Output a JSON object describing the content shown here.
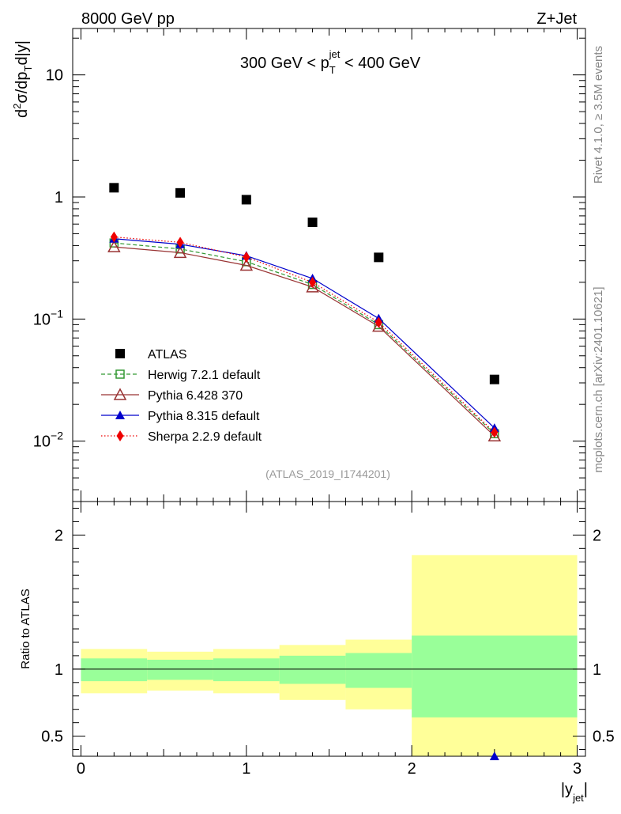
{
  "header": {
    "left": "8000 GeV pp",
    "right": "Z+Jet"
  },
  "side_text": {
    "top": "Rivet 4.1.0, ≥ 3.5M events",
    "bottom": "mcplots.cern.ch [arXiv:2401.10621]"
  },
  "watermark": "(ATLAS_2019_I1744201)",
  "colors": {
    "atlas": "#000000",
    "herwig": "#339933",
    "pythia6": "#993333",
    "pythia8": "#0000cc",
    "sherpa": "#ee0000",
    "band_inner": "#99ff99",
    "band_outer": "#ffff99"
  },
  "chart_data": [
    {
      "type": "line",
      "role": "main",
      "title": "300 GeV < p_T^jet < 400 GeV",
      "title_parts": {
        "pre": "300 GeV < p",
        "sub": "T",
        "sup": "jet",
        "post": " < 400 GeV"
      },
      "ylabel": "d²σ/dp_T d|y|",
      "ylabel_parts": {
        "a": "d",
        "sup": "2",
        "b": "σ/dp",
        "sub": "T",
        "c": "d|y|"
      },
      "yscale": "log",
      "ylim": [
        0.0032,
        24
      ],
      "xlim": [
        -0.05,
        3.05
      ],
      "ytick_labels": [
        {
          "value": 10,
          "label": "10"
        },
        {
          "value": 1,
          "label": "1"
        },
        {
          "value": 0.1,
          "base": "10",
          "exp": "−1"
        },
        {
          "value": 0.01,
          "base": "10",
          "exp": "−2"
        }
      ],
      "x": [
        0.2,
        0.6,
        1.0,
        1.4,
        1.8,
        2.5
      ],
      "series": [
        {
          "name": "ATLAS",
          "key": "atlas",
          "marker": "filled-square",
          "line": "none",
          "values": [
            1.19,
            1.08,
            0.95,
            0.62,
            0.32,
            0.032
          ]
        },
        {
          "name": "Herwig 7.2.1 default",
          "key": "herwig",
          "marker": "open-square",
          "line": "dashed",
          "values": [
            0.42,
            0.375,
            0.295,
            0.192,
            0.09,
            0.0115
          ]
        },
        {
          "name": "Pythia 6.428 370",
          "key": "pythia6",
          "marker": "open-triangle",
          "line": "solid",
          "values": [
            0.39,
            0.35,
            0.275,
            0.183,
            0.087,
            0.011
          ]
        },
        {
          "name": "Pythia 8.315 default",
          "key": "pythia8",
          "marker": "filled-triangle",
          "line": "solid",
          "values": [
            0.455,
            0.41,
            0.33,
            0.215,
            0.101,
            0.0128
          ]
        },
        {
          "name": "Sherpa 2.2.9 default",
          "key": "sherpa",
          "marker": "filled-diamond",
          "line": "dotted",
          "values": [
            0.47,
            0.425,
            0.322,
            0.2,
            0.094,
            0.0118
          ]
        }
      ],
      "legend_position": "lower-left"
    },
    {
      "type": "area",
      "role": "ratio",
      "ylabel": "Ratio to ATLAS",
      "xlabel": "|y_jet|",
      "xlabel_parts": {
        "pre": "|y",
        "sub": "jet",
        "post": "|"
      },
      "ylim": [
        0.35,
        2.25
      ],
      "xlim": [
        -0.05,
        3.05
      ],
      "yticks": [
        0.5,
        1,
        2
      ],
      "ytick_labels": [
        "0.5",
        "1",
        "2"
      ],
      "xticks": [
        0,
        1,
        2,
        3
      ],
      "xtick_labels": [
        "0",
        "1",
        "2",
        "3"
      ],
      "bins": [
        {
          "lo": 0.0,
          "hi": 0.4,
          "inner": [
            0.91,
            1.08
          ],
          "outer": [
            0.82,
            1.15
          ]
        },
        {
          "lo": 0.4,
          "hi": 0.8,
          "inner": [
            0.92,
            1.07
          ],
          "outer": [
            0.84,
            1.13
          ]
        },
        {
          "lo": 0.8,
          "hi": 1.2,
          "inner": [
            0.91,
            1.08
          ],
          "outer": [
            0.82,
            1.15
          ]
        },
        {
          "lo": 1.2,
          "hi": 1.6,
          "inner": [
            0.89,
            1.1
          ],
          "outer": [
            0.77,
            1.18
          ]
        },
        {
          "lo": 1.6,
          "hi": 2.0,
          "inner": [
            0.86,
            1.12
          ],
          "outer": [
            0.7,
            1.22
          ]
        },
        {
          "lo": 2.0,
          "hi": 3.0,
          "inner": [
            0.64,
            1.25
          ],
          "outer": [
            0.35,
            1.85
          ]
        }
      ],
      "reference_line": 1,
      "visible_points": [
        {
          "series": "Pythia 8.315 default",
          "key": "pythia8",
          "x": 2.5,
          "value": 0.35
        }
      ]
    }
  ]
}
